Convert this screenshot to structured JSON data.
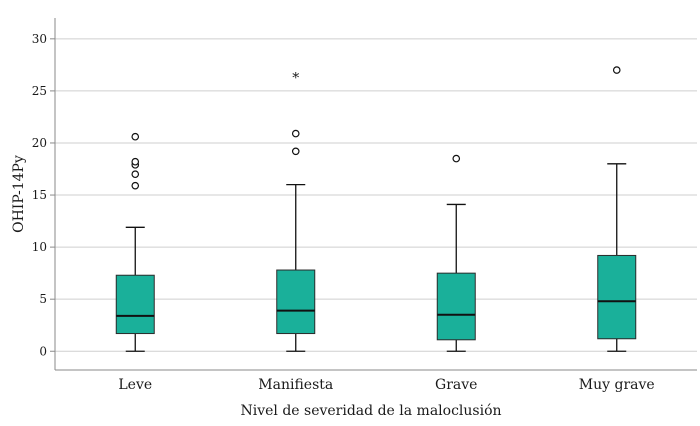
{
  "chart_data": {
    "type": "boxplot",
    "xlabel": "Nivel de severidad de la maloclusión",
    "ylabel": "OHIP-14Py",
    "ylim": [
      -1.8,
      32
    ],
    "yticks": [
      0,
      5,
      10,
      15,
      20,
      25,
      30
    ],
    "grid": true,
    "box_color": "#1ab09a",
    "categories": [
      "Leve",
      "Manifiesta",
      "Grave",
      "Muy grave"
    ],
    "boxes": [
      {
        "category": "Leve",
        "whisker_low": 0,
        "q1": 1.7,
        "median": 3.4,
        "q3": 7.3,
        "whisker_high": 11.9,
        "outliers": [
          15.9,
          17.0,
          17.9,
          18.2,
          20.6
        ],
        "extremes": []
      },
      {
        "category": "Manifiesta",
        "whisker_low": 0,
        "q1": 1.7,
        "median": 3.9,
        "q3": 7.8,
        "whisker_high": 16.0,
        "outliers": [
          19.2,
          20.9
        ],
        "extremes": [
          26.5
        ]
      },
      {
        "category": "Grave",
        "whisker_low": 0,
        "q1": 1.1,
        "median": 3.5,
        "q3": 7.5,
        "whisker_high": 14.1,
        "outliers": [
          18.5
        ],
        "extremes": []
      },
      {
        "category": "Muy grave",
        "whisker_low": 0,
        "q1": 1.2,
        "median": 4.8,
        "q3": 9.2,
        "whisker_high": 18.0,
        "outliers": [
          27.0
        ],
        "extremes": []
      }
    ]
  }
}
